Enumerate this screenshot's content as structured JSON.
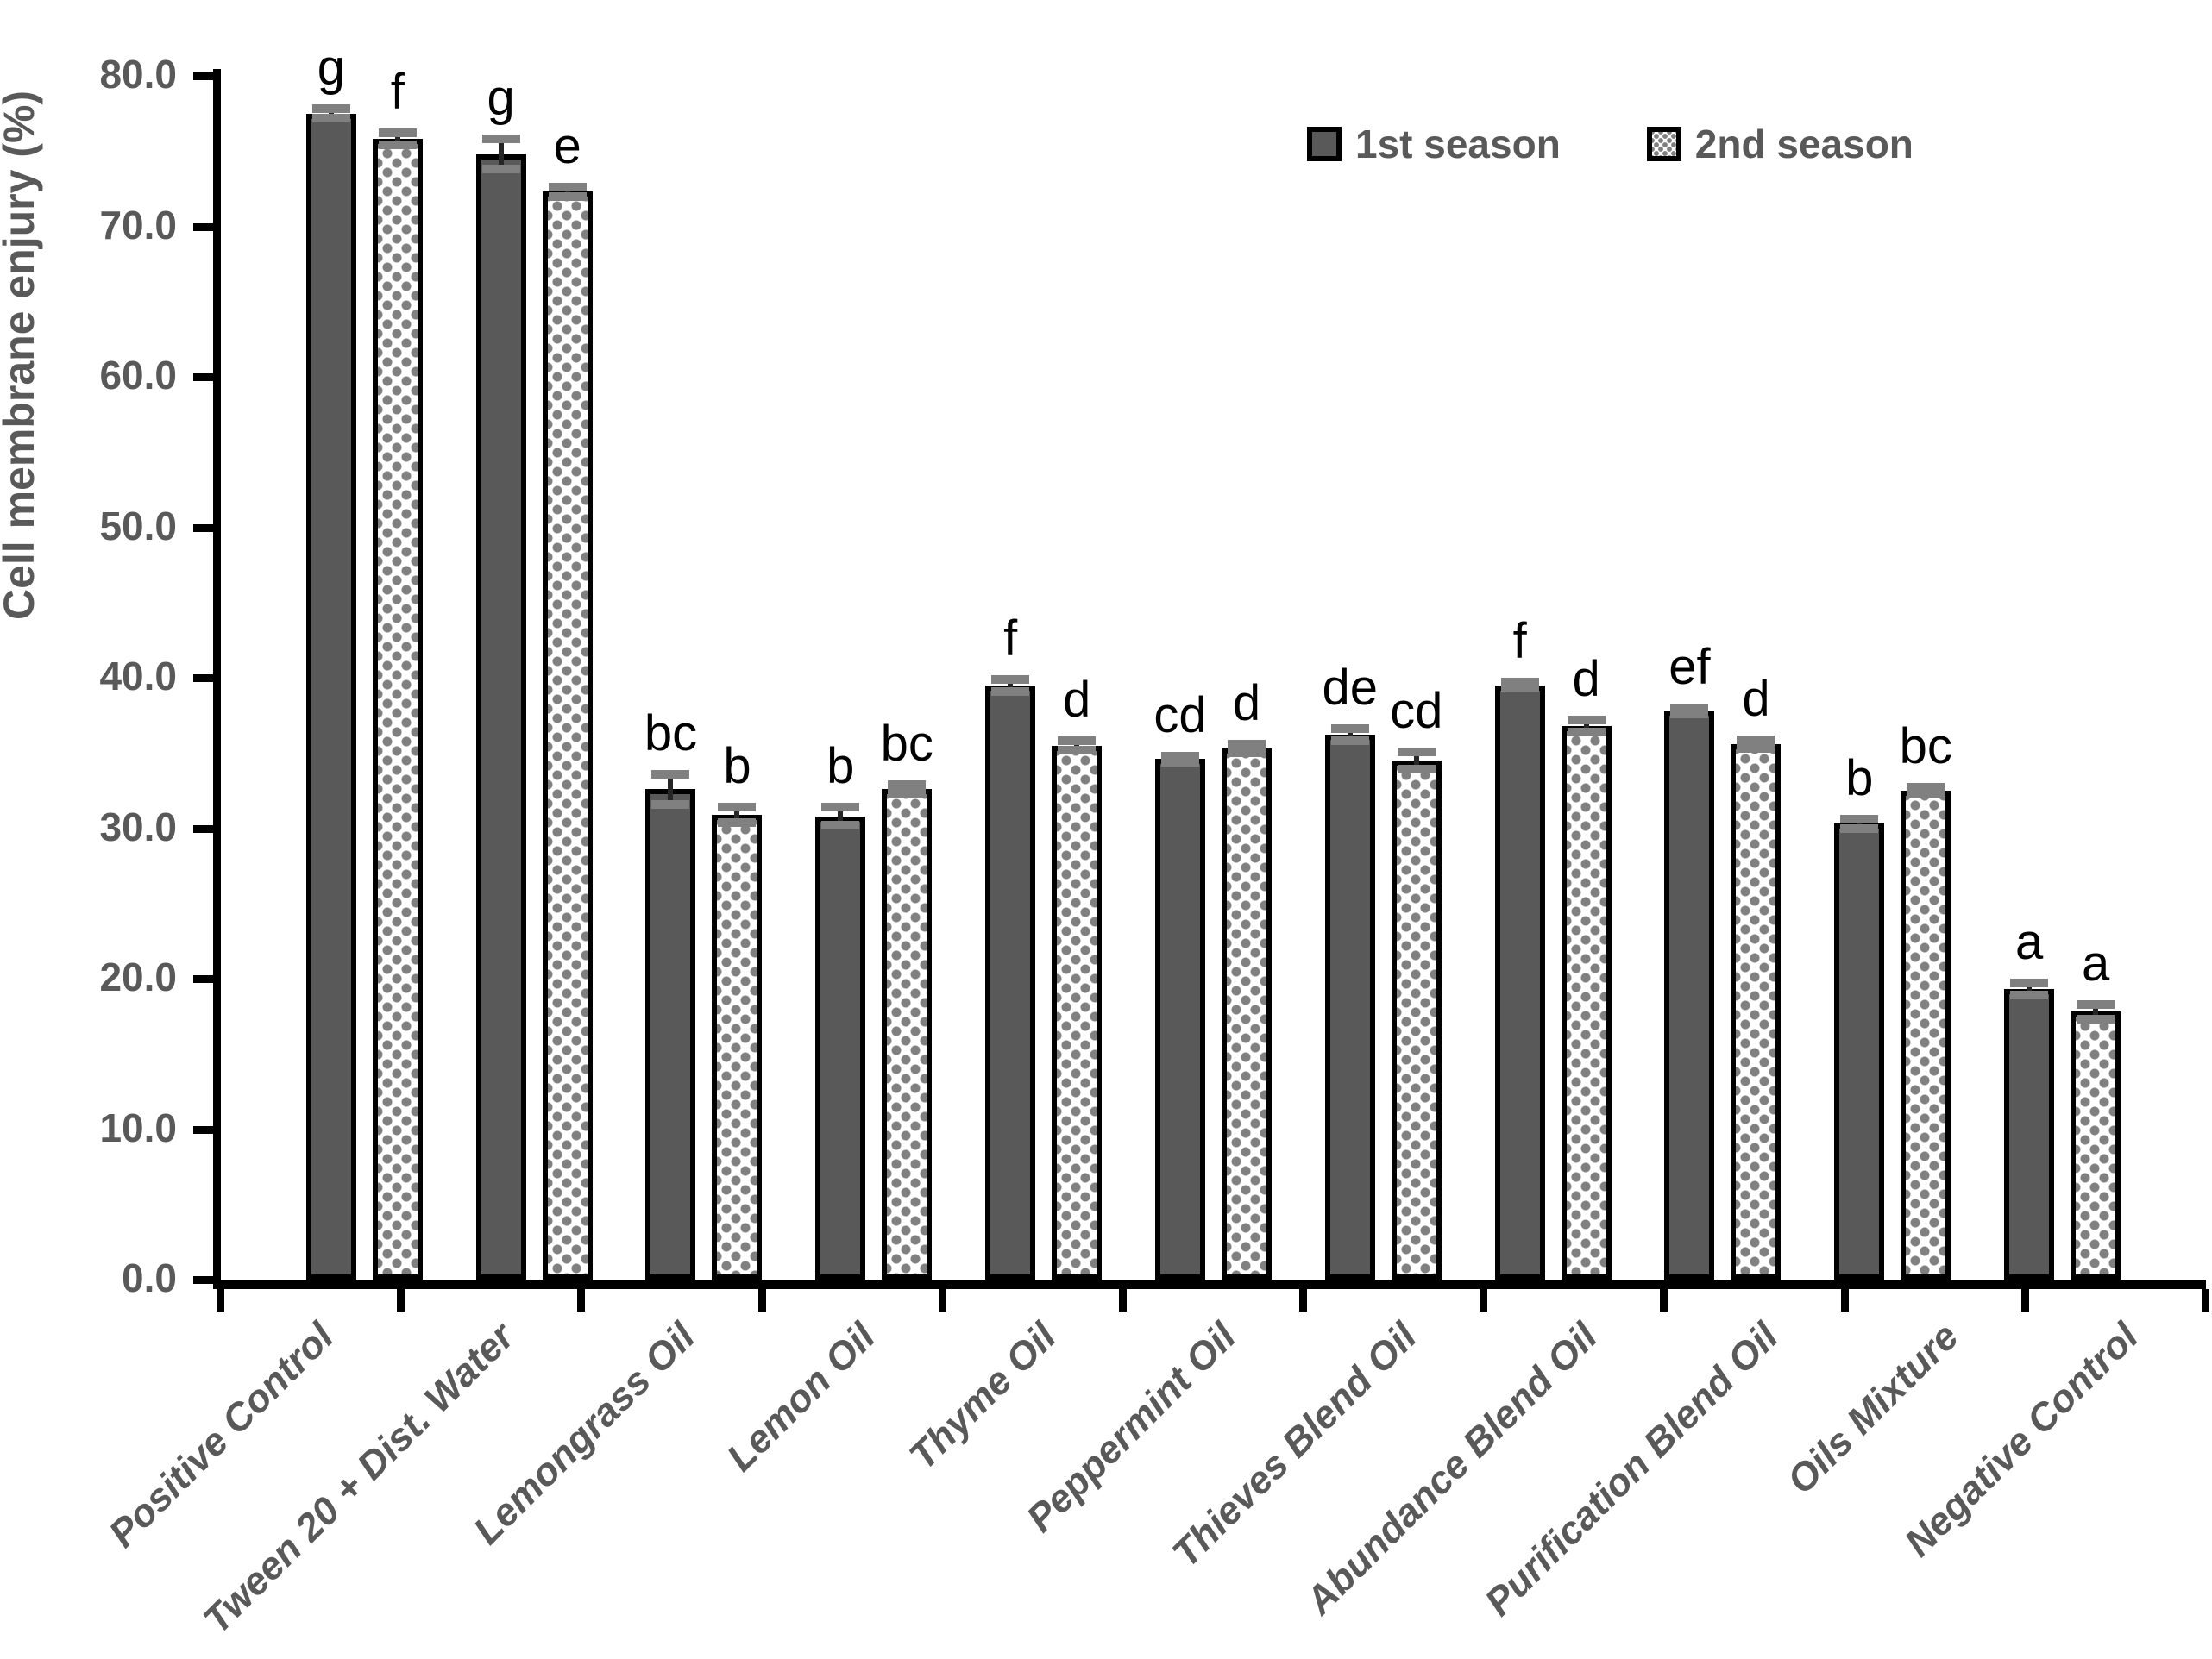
{
  "chart_data": {
    "type": "bar",
    "title": "",
    "xlabel": "",
    "ylabel": "Cell membrane enjury (%)",
    "ylim": [
      0,
      80
    ],
    "ytick_step": 10,
    "ytick_labels": [
      "80.0",
      "70.0",
      "60.0",
      "50.0",
      "40.0",
      "30.0",
      "20.0",
      "10.0",
      "0.0"
    ],
    "grid": false,
    "legend_position": "top-right",
    "categories": [
      "Positive Control",
      "Tween 20 + Dist. Water",
      "Lemongrass Oil",
      "Lemon Oil",
      "Thyme Oil",
      "Peppermint Oil",
      "Thieves Blend Oil",
      "Abundance Blend Oil",
      "Purification Blend Oil",
      "Oils Mixture",
      "Negative Control"
    ],
    "series": [
      {
        "name": "1st season",
        "style": "solid",
        "values": [
          77.5,
          74.8,
          32.6,
          30.8,
          39.5,
          34.6,
          36.2,
          39.5,
          37.8,
          30.3,
          19.3
        ],
        "errors": [
          0.3,
          1.0,
          1.0,
          0.6,
          0.4,
          0.2,
          0.4,
          0.2,
          0.2,
          0.3,
          0.4
        ],
        "letters": [
          "g",
          "g",
          "bc",
          "b",
          "f",
          "cd",
          "de",
          "f",
          "ef",
          "b",
          "a"
        ]
      },
      {
        "name": "2nd season",
        "style": "dotted",
        "values": [
          75.8,
          72.3,
          30.9,
          32.6,
          35.5,
          35.3,
          34.5,
          36.8,
          35.6,
          32.5,
          17.8
        ],
        "errors": [
          0.4,
          0.3,
          0.5,
          0.3,
          0.3,
          0.3,
          0.6,
          0.4,
          0.3,
          0.2,
          0.5
        ],
        "letters": [
          "f",
          "e",
          "b",
          "bc",
          "d",
          "d",
          "cd",
          "d",
          "d",
          "bc",
          "a"
        ]
      }
    ],
    "colors": {
      "bar_solid_fill": "#595959",
      "bar_dotted_fill": "#ffffff",
      "bar_dot": "#808080",
      "bar_border": "#000000",
      "axis": "#000000",
      "axis_text": "#595959",
      "letter": "#000000",
      "error_bar": "#808080"
    }
  }
}
